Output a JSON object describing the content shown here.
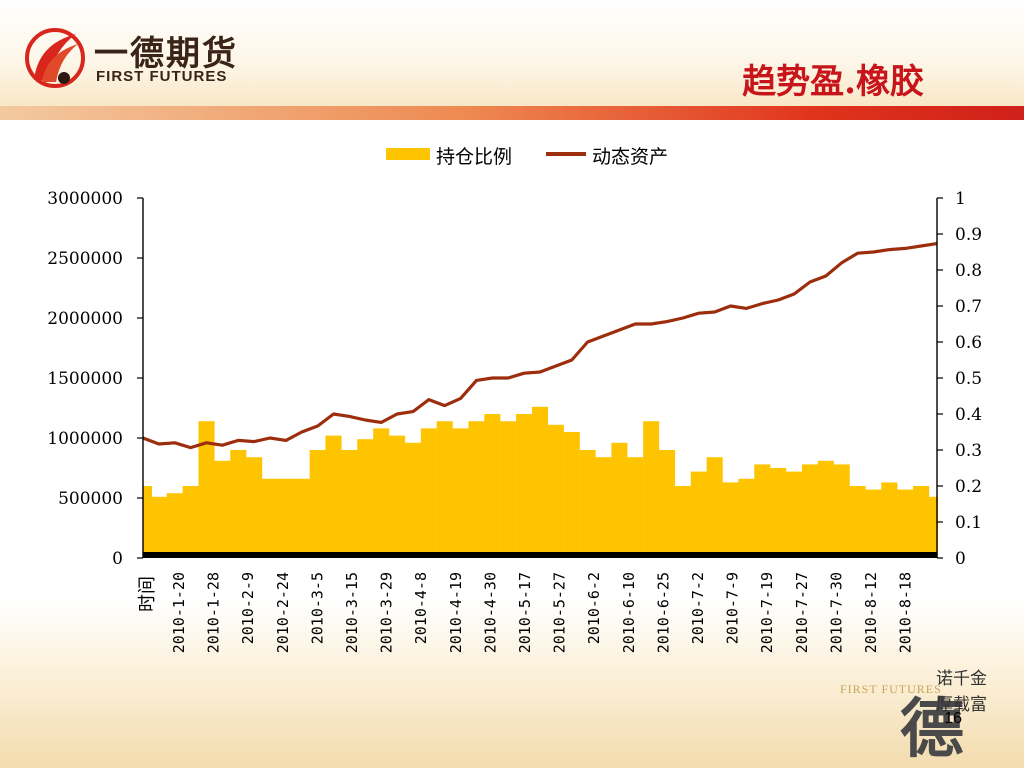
{
  "header": {
    "logo_cn": "一德期货",
    "logo_en": "FIRST FUTURES",
    "title": "趋势盈.橡胶"
  },
  "footer": {
    "brand": "FIRST FUTURES",
    "slogan_line1": "诺千金",
    "slogan_line2": "厚载富",
    "brand_char": "德",
    "slide_number": "16"
  },
  "colors": {
    "bar": "#ffc400",
    "line": "#9c2e0d",
    "title": "#c8141b"
  },
  "chart_data": {
    "type": "bar+line",
    "xlabel": "时间",
    "x_ticks": [
      "2010-1-20",
      "2010-1-28",
      "2010-2-9",
      "2010-2-24",
      "2010-3-5",
      "2010-3-15",
      "2010-3-29",
      "2010-4-8",
      "2010-4-19",
      "2010-4-30",
      "2010-5-17",
      "2010-5-27",
      "2010-6-2",
      "2010-6-10",
      "2010-6-25",
      "2010-7-2",
      "2010-7-9",
      "2010-7-19",
      "2010-7-27",
      "2010-7-30",
      "2010-8-12",
      "2010-8-18"
    ],
    "y_left": {
      "lim": [
        0,
        3000000
      ],
      "ticks": [
        "3000000",
        "2500000",
        "2000000",
        "1500000",
        "1000000",
        "500000",
        "0"
      ]
    },
    "y_right": {
      "lim": [
        0,
        1
      ],
      "ticks": [
        "1",
        "0.9",
        "0.8",
        "0.7",
        "0.6",
        "0.5",
        "0.4",
        "0.3",
        "0.2",
        "0.1",
        "0"
      ]
    },
    "legend": {
      "position": "top"
    },
    "series": [
      {
        "name": "持仓比例",
        "type": "bar",
        "axis": "right",
        "x": [
          0,
          0.02,
          0.04,
          0.06,
          0.08,
          0.1,
          0.12,
          0.14,
          0.16,
          0.18,
          0.2,
          0.22,
          0.24,
          0.26,
          0.28,
          0.3,
          0.32,
          0.34,
          0.36,
          0.38,
          0.4,
          0.42,
          0.44,
          0.46,
          0.48,
          0.5,
          0.52,
          0.54,
          0.56,
          0.58,
          0.6,
          0.62,
          0.64,
          0.66,
          0.68,
          0.7,
          0.72,
          0.74,
          0.76,
          0.78,
          0.8,
          0.82,
          0.84,
          0.86,
          0.88,
          0.9,
          0.92,
          0.94,
          0.96,
          0.98,
          1.0
        ],
        "values": [
          0.2,
          0.17,
          0.18,
          0.2,
          0.38,
          0.27,
          0.3,
          0.28,
          0.22,
          0.22,
          0.22,
          0.3,
          0.34,
          0.3,
          0.33,
          0.36,
          0.34,
          0.32,
          0.36,
          0.38,
          0.36,
          0.38,
          0.4,
          0.38,
          0.4,
          0.42,
          0.37,
          0.35,
          0.3,
          0.28,
          0.32,
          0.28,
          0.38,
          0.3,
          0.2,
          0.24,
          0.28,
          0.21,
          0.22,
          0.26,
          0.25,
          0.24,
          0.26,
          0.27,
          0.26,
          0.2,
          0.19,
          0.21,
          0.19,
          0.2,
          0.17
        ]
      },
      {
        "name": "动态资产",
        "type": "line",
        "axis": "left",
        "x": [
          0,
          0.02,
          0.04,
          0.06,
          0.08,
          0.1,
          0.12,
          0.14,
          0.16,
          0.18,
          0.2,
          0.22,
          0.24,
          0.26,
          0.28,
          0.3,
          0.32,
          0.34,
          0.36,
          0.38,
          0.4,
          0.42,
          0.44,
          0.46,
          0.48,
          0.5,
          0.52,
          0.54,
          0.56,
          0.58,
          0.6,
          0.62,
          0.64,
          0.66,
          0.68,
          0.7,
          0.72,
          0.74,
          0.76,
          0.78,
          0.8,
          0.82,
          0.84,
          0.86,
          0.88,
          0.9,
          0.92,
          0.94,
          0.96,
          0.98,
          1.0
        ],
        "values": [
          1000000,
          950000,
          960000,
          920000,
          960000,
          940000,
          980000,
          970000,
          1000000,
          980000,
          1050000,
          1100000,
          1200000,
          1180000,
          1150000,
          1130000,
          1200000,
          1220000,
          1320000,
          1270000,
          1330000,
          1480000,
          1500000,
          1500000,
          1540000,
          1550000,
          1600000,
          1650000,
          1800000,
          1850000,
          1900000,
          1950000,
          1950000,
          1970000,
          2000000,
          2040000,
          2050000,
          2100000,
          2080000,
          2120000,
          2150000,
          2200000,
          2300000,
          2350000,
          2460000,
          2540000,
          2550000,
          2570000,
          2580000,
          2600000,
          2620000
        ]
      }
    ]
  }
}
